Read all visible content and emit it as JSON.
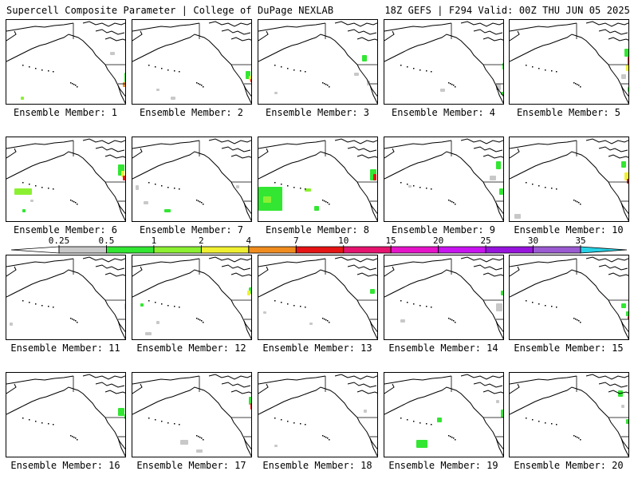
{
  "header": {
    "left": "Supercell Composite Parameter | College of DuPage NEXLAB",
    "right": "18Z GEFS | F294 Valid: 00Z THU JUN 05 2025"
  },
  "panels": [
    {
      "label": "Ensemble Member: 1"
    },
    {
      "label": "Ensemble Member: 2"
    },
    {
      "label": "Ensemble Member: 3"
    },
    {
      "label": "Ensemble Member: 4"
    },
    {
      "label": "Ensemble Member: 5"
    },
    {
      "label": "Ensemble Member: 6"
    },
    {
      "label": "Ensemble Member: 7"
    },
    {
      "label": "Ensemble Member: 8"
    },
    {
      "label": "Ensemble Member: 9"
    },
    {
      "label": "Ensemble Member: 10"
    },
    {
      "label": "Ensemble Member: 11"
    },
    {
      "label": "Ensemble Member: 12"
    },
    {
      "label": "Ensemble Member: 13"
    },
    {
      "label": "Ensemble Member: 14"
    },
    {
      "label": "Ensemble Member: 15"
    },
    {
      "label": "Ensemble Member: 16"
    },
    {
      "label": "Ensemble Member: 17"
    },
    {
      "label": "Ensemble Member: 18"
    },
    {
      "label": "Ensemble Member: 19"
    },
    {
      "label": "Ensemble Member: 20"
    }
  ],
  "legend": {
    "ticks": [
      "0.25",
      "0.5",
      "1",
      "2",
      "4",
      "7",
      "10",
      "15",
      "20",
      "25",
      "30",
      "35"
    ],
    "colors": [
      "#c8c8c8",
      "#32e632",
      "#8cf032",
      "#f0f032",
      "#f08c1e",
      "#e61414",
      "#e6146e",
      "#e614c8",
      "#c814f0",
      "#9614dc",
      "#9b5ad2",
      "#28d2e6"
    ],
    "end_left": "#ffffff",
    "end_right": "#28d2e6"
  }
}
